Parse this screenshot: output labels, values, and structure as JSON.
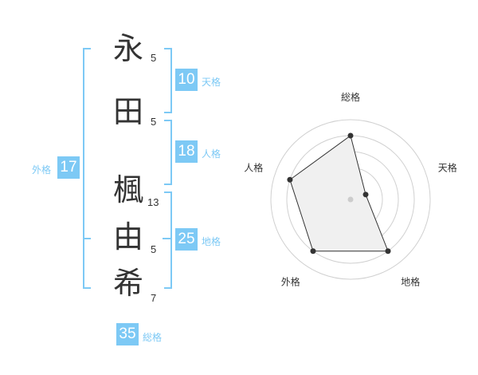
{
  "name_chars": [
    {
      "char": "永",
      "strokes": "5"
    },
    {
      "char": "田",
      "strokes": "5"
    },
    {
      "char": "楓",
      "strokes": "13"
    },
    {
      "char": "由",
      "strokes": "5"
    },
    {
      "char": "希",
      "strokes": "7"
    }
  ],
  "kaku": {
    "tenkaku": {
      "label": "天格",
      "value": "10"
    },
    "jinkaku": {
      "label": "人格",
      "value": "18"
    },
    "chikaku": {
      "label": "地格",
      "value": "25"
    },
    "gaikaku": {
      "label": "外格",
      "value": "17"
    },
    "soukaku": {
      "label": "総格",
      "value": "35"
    }
  },
  "colors": {
    "accent": "#7dc9f5",
    "text": "#333333",
    "radar_fill": "#f0f0f0"
  },
  "chart_data": {
    "type": "radar",
    "axes": [
      "総格",
      "天格",
      "地格",
      "外格",
      "人格"
    ],
    "values": [
      4,
      1,
      4,
      4,
      4
    ],
    "range": [
      0,
      5
    ],
    "rings": 5
  }
}
